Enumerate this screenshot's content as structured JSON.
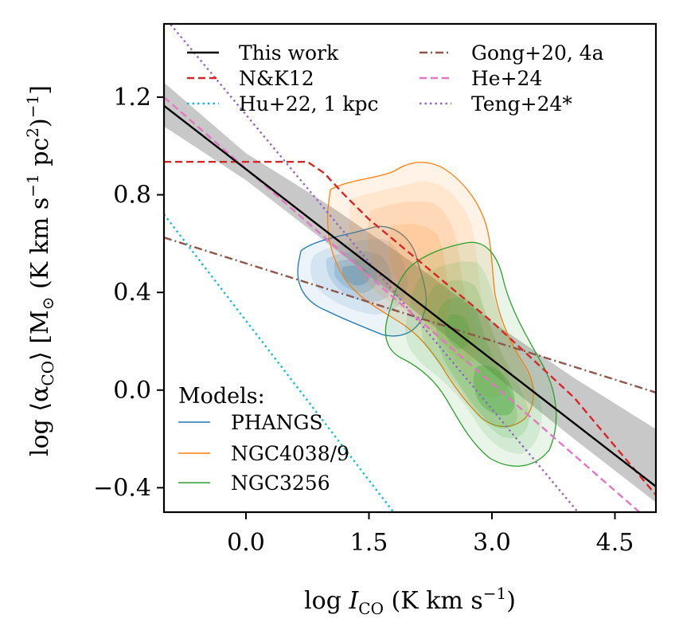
{
  "chart_data": {
    "type": "line",
    "xlabel": "log I_CO (K km s^-1)",
    "xlabel_main": "log ",
    "xlabel_var": "I",
    "xlabel_sub": "CO",
    "xlabel_unit": " (K km s",
    "xlabel_sup": "−1",
    "xlabel_end": ")",
    "ylabel": "log ⟨α_CO⟩ [M☉ (K km s^-1 pc^2)^-1]",
    "ylabel_a": "log ⟨α",
    "ylabel_sub": "CO",
    "ylabel_b": "⟩ [M",
    "ylabel_sun": "⊙",
    "ylabel_c": " (K km s",
    "ylabel_sup1": "−1",
    "ylabel_d": " pc",
    "ylabel_sup2": "2",
    "ylabel_e": ")",
    "ylabel_sup3": "−1",
    "ylabel_f": "]",
    "xlim": [
      -1.0,
      5.0
    ],
    "ylim": [
      -0.5,
      1.5
    ],
    "xticks": [
      0.0,
      1.5,
      3.0,
      4.5
    ],
    "xtick_labels": [
      "0.0",
      "1.5",
      "3.0",
      "4.5"
    ],
    "yticks": [
      -0.4,
      0.0,
      0.4,
      0.8,
      1.2
    ],
    "ytick_labels": [
      "−0.4",
      "0.0",
      "0.4",
      "0.8",
      "1.2"
    ],
    "series": [
      {
        "name": "This work",
        "color": "#000000",
        "style": "solid",
        "x": [
          -1.0,
          5.0
        ],
        "y": [
          1.165,
          -0.395
        ]
      },
      {
        "name": "N&K12",
        "color": "#d62728",
        "style": "dashed",
        "x": [
          -1.0,
          0.75,
          0.95,
          1.2,
          1.5,
          2.0,
          3.0,
          4.0,
          5.0
        ],
        "y": [
          0.935,
          0.935,
          0.89,
          0.8,
          0.7,
          0.56,
          0.28,
          -0.03,
          -0.43
        ]
      },
      {
        "name": "Hu+22, 1 kpc",
        "color": "#17becf",
        "style": "dotted",
        "x": [
          -1.0,
          1.8
        ],
        "y": [
          0.72,
          -0.5
        ]
      },
      {
        "name": "Gong+20, 4a",
        "color": "#8c564b",
        "style": "dashdot",
        "x": [
          -1.0,
          5.0
        ],
        "y": [
          0.625,
          -0.01
        ]
      },
      {
        "name": "He+24",
        "color": "#e377c2",
        "style": "dashed",
        "x": [
          -1.0,
          4.8
        ],
        "y": [
          1.2,
          -0.5
        ]
      },
      {
        "name": "Teng+24*",
        "color": "#9467bd",
        "style": "dotted",
        "x": [
          -1.0,
          4.05
        ],
        "y": [
          1.53,
          -0.5
        ]
      }
    ],
    "uncertainty_band": {
      "color": "#c8c8c8",
      "x": [
        -1.0,
        0.0,
        1.0,
        2.0,
        3.0,
        4.0,
        5.0
      ],
      "y_low": [
        1.08,
        0.86,
        0.6,
        0.34,
        0.07,
        -0.2,
        -0.46
      ],
      "y_high": [
        1.26,
        0.97,
        0.76,
        0.53,
        0.28,
        0.05,
        -0.16
      ]
    },
    "models_title": "Models:",
    "models": [
      {
        "name": "PHANGS",
        "color": "#1f77b4",
        "centers": [
          [
            1.35,
            0.46
          ],
          [
            1.55,
            0.5
          ],
          [
            1.7,
            0.48
          ],
          [
            1.2,
            0.44
          ]
        ]
      },
      {
        "name": "NGC4038/9",
        "color": "#ff7f0e",
        "centers": [
          [
            1.9,
            0.6
          ],
          [
            2.3,
            0.52
          ],
          [
            2.6,
            0.3
          ],
          [
            2.9,
            0.15
          ]
        ]
      },
      {
        "name": "NGC3256",
        "color": "#2ca02c",
        "centers": [
          [
            2.1,
            0.38
          ],
          [
            2.6,
            0.25
          ],
          [
            2.9,
            0.12
          ],
          [
            3.2,
            0.0
          ]
        ]
      }
    ]
  }
}
